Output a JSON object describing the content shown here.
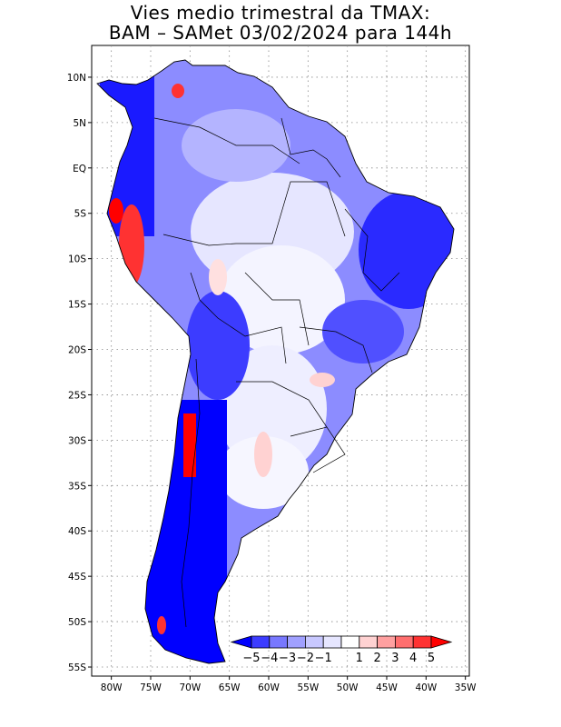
{
  "title": {
    "line1": "Vies medio trimestral da TMAX:",
    "line2": "BAM – SAMet 03/02/2024  para 144h"
  },
  "map": {
    "lon_range": [
      -82.5,
      -34.5
    ],
    "lat_range": [
      -56,
      13.5
    ],
    "lat_ticks": [
      {
        "value": 10,
        "label": "10N"
      },
      {
        "value": 5,
        "label": "5N"
      },
      {
        "value": 0,
        "label": "EQ"
      },
      {
        "value": -5,
        "label": "5S"
      },
      {
        "value": -10,
        "label": "10S"
      },
      {
        "value": -15,
        "label": "15S"
      },
      {
        "value": -20,
        "label": "20S"
      },
      {
        "value": -25,
        "label": "25S"
      },
      {
        "value": -30,
        "label": "30S"
      },
      {
        "value": -35,
        "label": "35S"
      },
      {
        "value": -40,
        "label": "40S"
      },
      {
        "value": -45,
        "label": "45S"
      },
      {
        "value": -50,
        "label": "50S"
      },
      {
        "value": -55,
        "label": "55S"
      }
    ],
    "lon_ticks": [
      {
        "value": -80,
        "label": "80W"
      },
      {
        "value": -75,
        "label": "75W"
      },
      {
        "value": -70,
        "label": "70W"
      },
      {
        "value": -65,
        "label": "65W"
      },
      {
        "value": -60,
        "label": "60W"
      },
      {
        "value": -55,
        "label": "55W"
      },
      {
        "value": -50,
        "label": "50W"
      },
      {
        "value": -45,
        "label": "45W"
      },
      {
        "value": -40,
        "label": "40W"
      },
      {
        "value": -35,
        "label": "35W"
      }
    ],
    "grid": "dotted"
  },
  "colorbar": {
    "labels": [
      "−5",
      "−4",
      "−3",
      "−2",
      "−1",
      "1",
      "2",
      "3",
      "4",
      "5"
    ],
    "colors": [
      "#0000ff",
      "#3c3cff",
      "#7878ff",
      "#a0a0ff",
      "#c8c8ff",
      "#e6e6ff",
      "#ffffff",
      "#ffd2d2",
      "#ffa0a0",
      "#ff6e6e",
      "#ff3232",
      "#ff0000"
    ]
  },
  "colors": {
    "strong_cold": "#0000ff",
    "cold": "#3c3cff",
    "mild_cold": "#7878ff",
    "light_cold": "#a0a0ff",
    "faint_cold": "#c8c8ff",
    "faint_warm": "#ffd2d2",
    "warm": "#ff6e6e",
    "strong_warm": "#ff0000"
  }
}
